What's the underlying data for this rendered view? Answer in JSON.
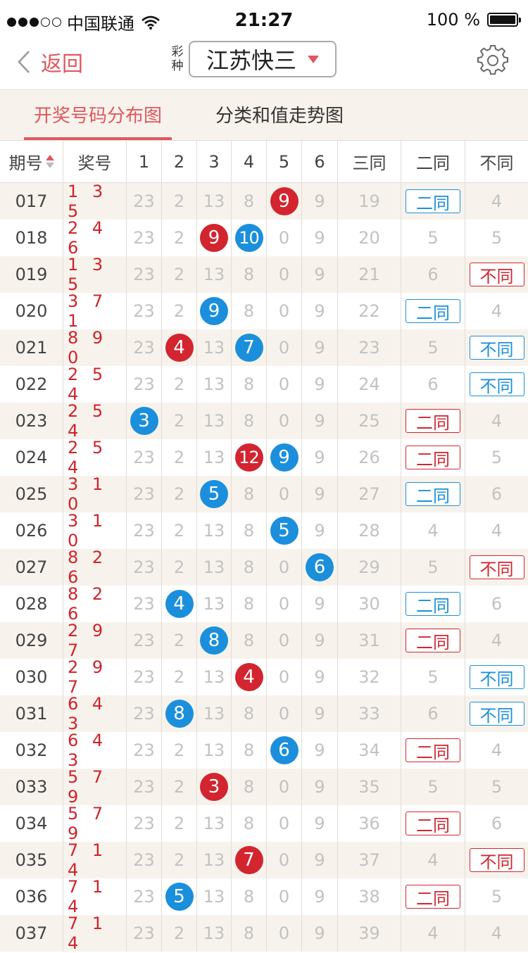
{
  "status": {
    "carrier": "中国联通",
    "time": "21:27",
    "battery": "100 %"
  },
  "nav": {
    "back": "返回",
    "lotto_tag": "彩种",
    "lotto": "江苏快三"
  },
  "tabs": [
    "开奖号码分布图",
    "分类和值走势图"
  ],
  "headers": [
    "期号",
    "奖号",
    "1",
    "2",
    "3",
    "4",
    "5",
    "6",
    "三同",
    "二同",
    "不同"
  ],
  "colors": {
    "accent": "#e0575f",
    "red": "#d22530",
    "blue": "#1b8fdc"
  },
  "rows": [
    {
      "issue": "017",
      "draw": "135",
      "cells": [
        "23",
        "2",
        "13",
        "8",
        {
          "ball": "9",
          "color": "red"
        },
        "9",
        "19",
        {
          "tag": "二同",
          "color": "blue"
        },
        "4"
      ]
    },
    {
      "issue": "018",
      "draw": "246",
      "cells": [
        "23",
        "2",
        {
          "ball": "9",
          "color": "red"
        },
        {
          "ball": "10",
          "color": "blue"
        },
        "0",
        "9",
        "20",
        "5",
        "5"
      ]
    },
    {
      "issue": "019",
      "draw": "135",
      "cells": [
        "23",
        "2",
        "13",
        "8",
        "0",
        "9",
        "21",
        "6",
        {
          "tag": "不同",
          "color": "red"
        }
      ]
    },
    {
      "issue": "020",
      "draw": "371",
      "cells": [
        "23",
        "2",
        {
          "ball": "9",
          "color": "blue"
        },
        "8",
        "0",
        "9",
        "22",
        {
          "tag": "二同",
          "color": "blue"
        },
        "4"
      ]
    },
    {
      "issue": "021",
      "draw": "890",
      "cells": [
        "23",
        {
          "ball": "4",
          "color": "red"
        },
        "13",
        {
          "ball": "7",
          "color": "blue"
        },
        "0",
        "9",
        "23",
        "5",
        {
          "tag": "不同",
          "color": "blue"
        }
      ]
    },
    {
      "issue": "022",
      "draw": "254",
      "cells": [
        "23",
        "2",
        "13",
        "8",
        "0",
        "9",
        "24",
        "6",
        {
          "tag": "不同",
          "color": "blue"
        }
      ]
    },
    {
      "issue": "023",
      "draw": "254",
      "cells": [
        {
          "ball": "3",
          "color": "blue"
        },
        "2",
        "13",
        "8",
        "0",
        "9",
        "25",
        {
          "tag": "二同",
          "color": "red"
        },
        "4"
      ]
    },
    {
      "issue": "024",
      "draw": "254",
      "cells": [
        "23",
        "2",
        "13",
        {
          "ball": "12",
          "color": "red"
        },
        {
          "ball": "9",
          "color": "blue"
        },
        "9",
        "26",
        {
          "tag": "二同",
          "color": "red"
        },
        "5"
      ]
    },
    {
      "issue": "025",
      "draw": "310",
      "cells": [
        "23",
        "2",
        {
          "ball": "5",
          "color": "blue"
        },
        "8",
        "0",
        "9",
        "27",
        {
          "tag": "二同",
          "color": "blue"
        },
        "6"
      ]
    },
    {
      "issue": "026",
      "draw": "310",
      "cells": [
        "23",
        "2",
        "13",
        "8",
        {
          "ball": "5",
          "color": "blue"
        },
        "9",
        "28",
        "4",
        "4"
      ]
    },
    {
      "issue": "027",
      "draw": "826",
      "cells": [
        "23",
        "2",
        "13",
        "8",
        "0",
        {
          "ball": "6",
          "color": "blue"
        },
        "29",
        "5",
        {
          "tag": "不同",
          "color": "red"
        }
      ]
    },
    {
      "issue": "028",
      "draw": "826",
      "cells": [
        "23",
        {
          "ball": "4",
          "color": "blue"
        },
        "13",
        "8",
        "0",
        "9",
        "30",
        {
          "tag": "二同",
          "color": "blue"
        },
        "6"
      ]
    },
    {
      "issue": "029",
      "draw": "297",
      "cells": [
        "23",
        "2",
        {
          "ball": "8",
          "color": "blue"
        },
        "8",
        "0",
        "9",
        "31",
        {
          "tag": "二同",
          "color": "red"
        },
        "4"
      ]
    },
    {
      "issue": "030",
      "draw": "297",
      "cells": [
        "23",
        "2",
        "13",
        {
          "ball": "4",
          "color": "red"
        },
        "0",
        "9",
        "32",
        "5",
        {
          "tag": "不同",
          "color": "blue"
        }
      ]
    },
    {
      "issue": "031",
      "draw": "643",
      "cells": [
        "23",
        {
          "ball": "8",
          "color": "blue"
        },
        "13",
        "8",
        "0",
        "9",
        "33",
        "6",
        {
          "tag": "不同",
          "color": "blue"
        }
      ]
    },
    {
      "issue": "032",
      "draw": "643",
      "cells": [
        "23",
        "2",
        "13",
        "8",
        {
          "ball": "6",
          "color": "blue"
        },
        "9",
        "34",
        {
          "tag": "二同",
          "color": "red"
        },
        "4"
      ]
    },
    {
      "issue": "033",
      "draw": "579",
      "cells": [
        "23",
        "2",
        {
          "ball": "3",
          "color": "red"
        },
        "8",
        "0",
        "9",
        "35",
        "5",
        "5"
      ]
    },
    {
      "issue": "034",
      "draw": "579",
      "cells": [
        "23",
        "2",
        "13",
        "8",
        "0",
        "9",
        "36",
        {
          "tag": "二同",
          "color": "red"
        },
        "6"
      ]
    },
    {
      "issue": "035",
      "draw": "714",
      "cells": [
        "23",
        "2",
        "13",
        {
          "ball": "7",
          "color": "red"
        },
        "0",
        "9",
        "37",
        "4",
        {
          "tag": "不同",
          "color": "red"
        }
      ]
    },
    {
      "issue": "036",
      "draw": "714",
      "cells": [
        "23",
        {
          "ball": "5",
          "color": "blue"
        },
        "13",
        "8",
        "0",
        "9",
        "38",
        {
          "tag": "二同",
          "color": "red"
        },
        "5"
      ]
    },
    {
      "issue": "037",
      "draw": "714",
      "cells": [
        "23",
        "2",
        "13",
        "8",
        "0",
        "9",
        "39",
        "4",
        "4"
      ]
    }
  ]
}
